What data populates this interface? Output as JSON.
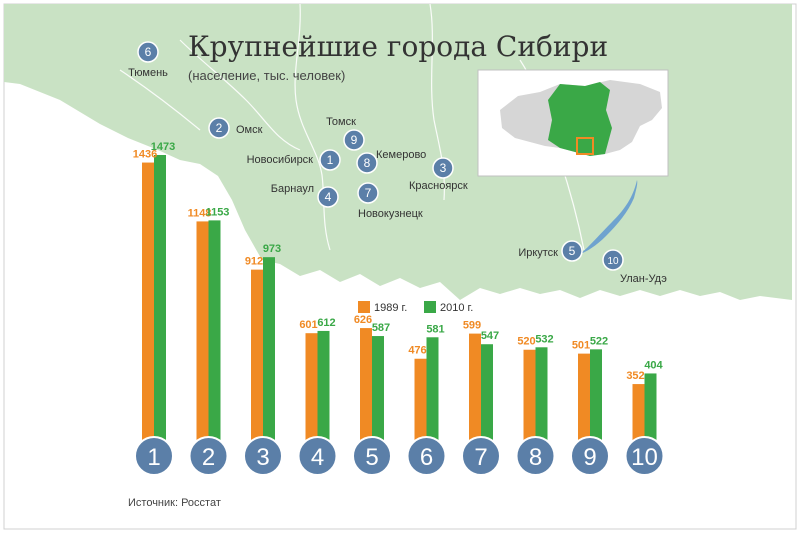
{
  "title": "Крупнейшие города Сибири",
  "subtitle": "(население, тыс. человек)",
  "source": "Источник: Росстат",
  "colors": {
    "series_1989": "#f08a24",
    "series_2010": "#3aa847",
    "marker": "#5b7fa8",
    "map_land": "#c9e2c4",
    "river": "#6fa3cf"
  },
  "chart_data": {
    "type": "bar",
    "categories": [
      "1",
      "2",
      "3",
      "4",
      "5",
      "6",
      "7",
      "8",
      "9",
      "10"
    ],
    "series": [
      {
        "name": "1989 г.",
        "values": [
          1436,
          1148,
          912,
          601,
          626,
          476,
          599,
          520,
          501,
          352
        ]
      },
      {
        "name": "2010 г.",
        "values": [
          1473,
          1153,
          973,
          612,
          587,
          581,
          547,
          532,
          522,
          404
        ]
      }
    ],
    "legend": "top-right",
    "grid": false
  },
  "map": {
    "cities": [
      {
        "num": "6",
        "name": "Тюмень"
      },
      {
        "num": "2",
        "name": "Омск"
      },
      {
        "num": "1",
        "name": "Новосибирск"
      },
      {
        "num": "9",
        "name": "Томск"
      },
      {
        "num": "8",
        "name": "Кемерово"
      },
      {
        "num": "4",
        "name": "Барнаул"
      },
      {
        "num": "7",
        "name": "Новокузнецк"
      },
      {
        "num": "3",
        "name": "Красноярск"
      },
      {
        "num": "5",
        "name": "Иркутск"
      },
      {
        "num": "10",
        "name": "Улан-Удэ"
      }
    ]
  }
}
